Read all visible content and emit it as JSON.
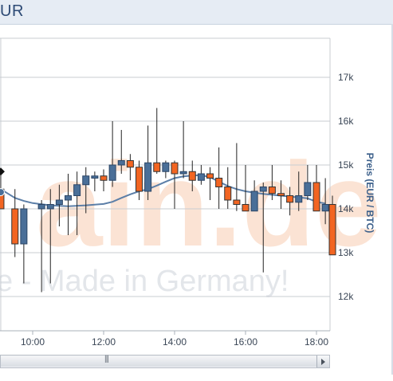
{
  "header": {
    "title": "UR"
  },
  "watermark": {
    "domain_text": "ain.de",
    "tagline": "e - Made in Germany!"
  },
  "chart_data": {
    "type": "candlestick",
    "ylabel": "Preis (EUR / BTC)",
    "y_ticks": [
      12000,
      13000,
      14000,
      15000,
      16000,
      17000
    ],
    "y_tick_labels": [
      "12k",
      "13k",
      "14k",
      "15k",
      "16k",
      "17k"
    ],
    "ylim": [
      11250,
      17750
    ],
    "x_tick_labels": [
      "10:00",
      "12:00",
      "14:00",
      "16:00",
      "18:00"
    ],
    "x_tick_hours": [
      10,
      12,
      14,
      16,
      18
    ],
    "xlim_hours": [
      9.1,
      18.4
    ],
    "interval_hours": 0.25,
    "candles": [
      {
        "t": 9.1,
        "o": 14450,
        "h": 14800,
        "l": 14000,
        "c": 14000
      },
      {
        "t": 9.5,
        "o": 14000,
        "h": 14450,
        "l": 12900,
        "c": 13200
      },
      {
        "t": 9.75,
        "o": 13200,
        "h": 14100,
        "l": 12300,
        "c": 14000
      },
      {
        "t": 10.25,
        "o": 14000,
        "h": 14200,
        "l": 12100,
        "c": 14100
      },
      {
        "t": 10.5,
        "o": 14000,
        "h": 14450,
        "l": 12300,
        "c": 14100
      },
      {
        "t": 10.75,
        "o": 14100,
        "h": 14550,
        "l": 13600,
        "c": 14200
      },
      {
        "t": 11.0,
        "o": 14200,
        "h": 14800,
        "l": 13400,
        "c": 14300
      },
      {
        "t": 11.25,
        "o": 14300,
        "h": 14850,
        "l": 13400,
        "c": 14550
      },
      {
        "t": 11.5,
        "o": 14550,
        "h": 14950,
        "l": 13900,
        "c": 14750
      },
      {
        "t": 11.75,
        "o": 14700,
        "h": 14850,
        "l": 14400,
        "c": 14750
      },
      {
        "t": 12.0,
        "o": 14750,
        "h": 14900,
        "l": 14400,
        "c": 14650
      },
      {
        "t": 12.25,
        "o": 14650,
        "h": 16000,
        "l": 14500,
        "c": 15000
      },
      {
        "t": 12.5,
        "o": 15000,
        "h": 15800,
        "l": 14800,
        "c": 15100
      },
      {
        "t": 12.75,
        "o": 15100,
        "h": 15250,
        "l": 14650,
        "c": 14950
      },
      {
        "t": 13.0,
        "o": 14950,
        "h": 15100,
        "l": 14200,
        "c": 14400
      },
      {
        "t": 13.25,
        "o": 14400,
        "h": 15900,
        "l": 14200,
        "c": 15050
      },
      {
        "t": 13.5,
        "o": 15050,
        "h": 16300,
        "l": 14800,
        "c": 14850
      },
      {
        "t": 13.75,
        "o": 14850,
        "h": 15100,
        "l": 14700,
        "c": 15050
      },
      {
        "t": 14.0,
        "o": 15050,
        "h": 15100,
        "l": 14000,
        "c": 14800
      },
      {
        "t": 14.25,
        "o": 14800,
        "h": 16000,
        "l": 14700,
        "c": 14850
      },
      {
        "t": 14.5,
        "o": 14850,
        "h": 15100,
        "l": 14400,
        "c": 14650
      },
      {
        "t": 14.75,
        "o": 14650,
        "h": 15000,
        "l": 14550,
        "c": 14800
      },
      {
        "t": 15.0,
        "o": 14800,
        "h": 14950,
        "l": 14200,
        "c": 14700
      },
      {
        "t": 15.25,
        "o": 14700,
        "h": 15400,
        "l": 14000,
        "c": 14500
      },
      {
        "t": 15.5,
        "o": 14500,
        "h": 14950,
        "l": 14000,
        "c": 14200
      },
      {
        "t": 15.75,
        "o": 14200,
        "h": 15500,
        "l": 13950,
        "c": 14100
      },
      {
        "t": 16.0,
        "o": 14100,
        "h": 15000,
        "l": 13950,
        "c": 13950
      },
      {
        "t": 16.25,
        "o": 13950,
        "h": 14650,
        "l": 13950,
        "c": 14400
      },
      {
        "t": 16.5,
        "o": 14400,
        "h": 14600,
        "l": 12550,
        "c": 14500
      },
      {
        "t": 16.75,
        "o": 14500,
        "h": 15000,
        "l": 14200,
        "c": 14350
      },
      {
        "t": 17.0,
        "o": 14350,
        "h": 14650,
        "l": 14000,
        "c": 14300
      },
      {
        "t": 17.25,
        "o": 14300,
        "h": 14500,
        "l": 13850,
        "c": 14150
      },
      {
        "t": 17.5,
        "o": 14150,
        "h": 14850,
        "l": 13950,
        "c": 14300
      },
      {
        "t": 17.75,
        "o": 14300,
        "h": 15000,
        "l": 14200,
        "c": 14600
      },
      {
        "t": 18.0,
        "o": 14600,
        "h": 15000,
        "l": 13950,
        "c": 13950
      },
      {
        "t": 18.25,
        "o": 13950,
        "h": 14700,
        "l": 13650,
        "c": 14100
      },
      {
        "t": 18.45,
        "o": 14100,
        "h": 14300,
        "l": 12950,
        "c": 12950
      }
    ],
    "moving_average": [
      {
        "t": 9.1,
        "v": 14450
      },
      {
        "t": 9.5,
        "v": 14250
      },
      {
        "t": 9.75,
        "v": 14180
      },
      {
        "t": 10.0,
        "v": 14130
      },
      {
        "t": 10.5,
        "v": 14080
      },
      {
        "t": 11.0,
        "v": 14060
      },
      {
        "t": 11.5,
        "v": 14080
      },
      {
        "t": 12.0,
        "v": 14110
      },
      {
        "t": 12.25,
        "v": 14160
      },
      {
        "t": 12.5,
        "v": 14250
      },
      {
        "t": 12.75,
        "v": 14330
      },
      {
        "t": 13.0,
        "v": 14400
      },
      {
        "t": 13.25,
        "v": 14450
      },
      {
        "t": 13.5,
        "v": 14530
      },
      {
        "t": 13.75,
        "v": 14620
      },
      {
        "t": 14.0,
        "v": 14700
      },
      {
        "t": 14.25,
        "v": 14740
      },
      {
        "t": 14.5,
        "v": 14760
      },
      {
        "t": 14.75,
        "v": 14770
      },
      {
        "t": 15.0,
        "v": 14720
      },
      {
        "t": 15.25,
        "v": 14620
      },
      {
        "t": 15.5,
        "v": 14520
      },
      {
        "t": 15.75,
        "v": 14450
      },
      {
        "t": 16.0,
        "v": 14400
      },
      {
        "t": 16.25,
        "v": 14370
      },
      {
        "t": 16.5,
        "v": 14340
      },
      {
        "t": 16.75,
        "v": 14320
      },
      {
        "t": 17.0,
        "v": 14300
      },
      {
        "t": 17.25,
        "v": 14280
      },
      {
        "t": 17.5,
        "v": 14260
      },
      {
        "t": 17.75,
        "v": 14240
      },
      {
        "t": 18.0,
        "v": 14160
      },
      {
        "t": 18.25,
        "v": 14120
      }
    ],
    "marker": {
      "t": 9.1,
      "v": 14850
    },
    "crosshair_hour": 9.1,
    "colors": {
      "up": "#4a6f98",
      "up_stroke": "#2b4566",
      "down": "#f26522",
      "down_stroke": "#333333",
      "wick": "#222222",
      "ma": "#5c7fa8",
      "grid": "#c8ccd2",
      "axis_text": "#3a4656",
      "ylabel": "#3b5f8a",
      "watermark": "#fbe3d4",
      "watermark_text": "#e3e6ea"
    },
    "grid": true,
    "legend": false
  }
}
